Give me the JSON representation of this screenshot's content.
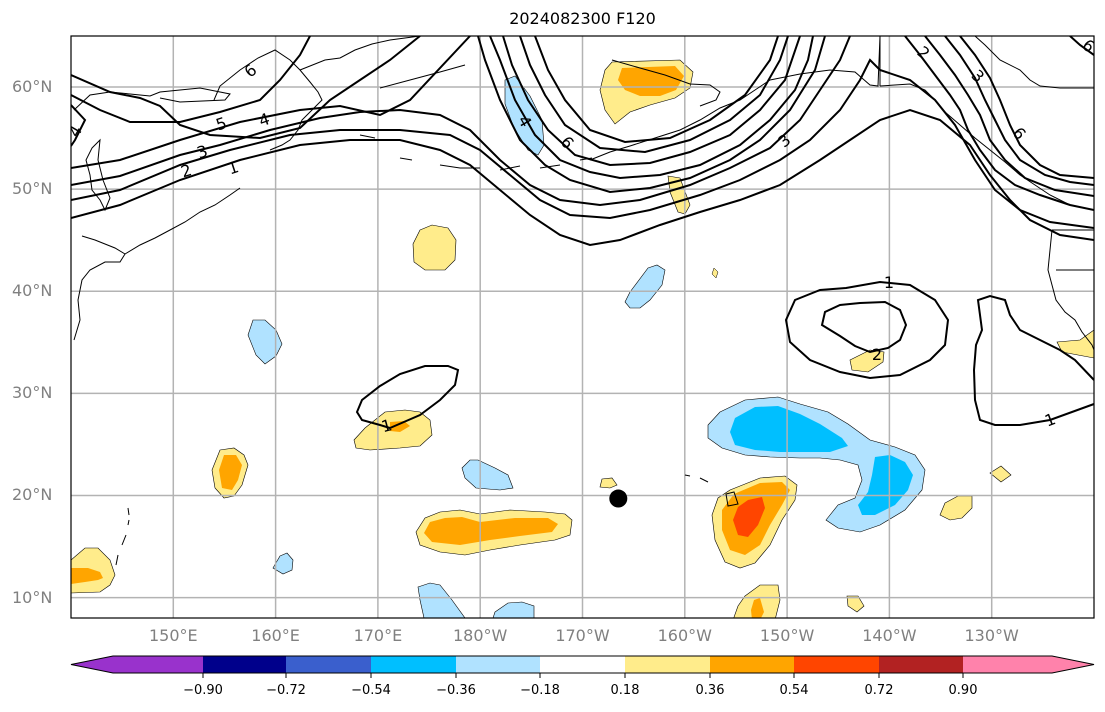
{
  "title": "2024082300 F120",
  "map": {
    "projection": "PlateCarree",
    "lon_range": [
      140,
      240
    ],
    "lat_range": [
      8,
      65
    ],
    "lat_labels": [
      "60°N",
      "50°N",
      "40°N",
      "30°N",
      "20°N",
      "10°N"
    ],
    "lat_values": [
      60,
      50,
      40,
      30,
      20,
      10
    ],
    "lon_labels": [
      "150°E",
      "160°E",
      "170°E",
      "180°W",
      "170°W",
      "160°W",
      "150°W",
      "140°W",
      "130°W"
    ],
    "lon_values": [
      150,
      160,
      170,
      180,
      190,
      200,
      210,
      220,
      230
    ],
    "contour_labels": [
      "5",
      "4",
      "3",
      "2",
      "1",
      "4",
      "6",
      "4",
      "6",
      "3",
      "2",
      "3",
      "6",
      "6",
      "1",
      "2",
      "1",
      "1"
    ],
    "marker": {
      "name": "storm-position",
      "lon": 193.5,
      "lat": 19.7,
      "color": "#000000"
    }
  },
  "colorbar": {
    "ticks": [
      "−0.90",
      "−0.72",
      "−0.54",
      "−0.36",
      "−0.18",
      "0.18",
      "0.36",
      "0.54",
      "0.72",
      "0.90"
    ],
    "tick_values": [
      -0.9,
      -0.72,
      -0.54,
      -0.36,
      -0.18,
      0.18,
      0.36,
      0.54,
      0.72,
      0.9
    ],
    "colors": [
      "#9932CC",
      "#00008B",
      "#3A5FCD",
      "#00BFFF",
      "#B0E2FF",
      "#FFFFFF",
      "#FFEC8B",
      "#FFA500",
      "#FF4500",
      "#B22222",
      "#FF82AB"
    ],
    "extend": "both"
  },
  "colors": {
    "grid": "#b3b3b3",
    "coast": "#000000",
    "contour": "#000000",
    "axis_label": "#808080"
  }
}
